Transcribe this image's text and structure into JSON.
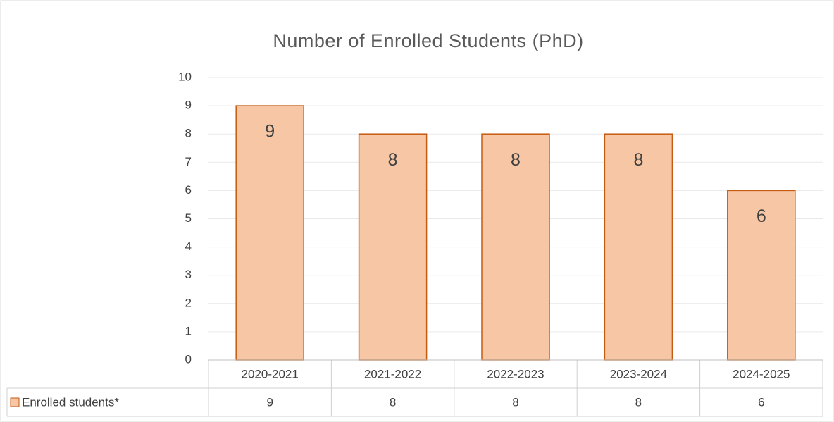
{
  "chart_data": {
    "type": "bar",
    "title": "Number of Enrolled Students (PhD)",
    "categories": [
      "2020-2021",
      "2021-2022",
      "2022-2023",
      "2023-2024",
      "2024-2025"
    ],
    "series": [
      {
        "name": "Enrolled students*",
        "color": "#f7c7a5",
        "values": [
          9,
          8,
          8,
          8,
          6
        ]
      }
    ],
    "ylim": [
      0,
      10
    ],
    "yticks": [
      0,
      1,
      2,
      3,
      4,
      5,
      6,
      7,
      8,
      9,
      10
    ],
    "grid": true,
    "data_table": true
  }
}
